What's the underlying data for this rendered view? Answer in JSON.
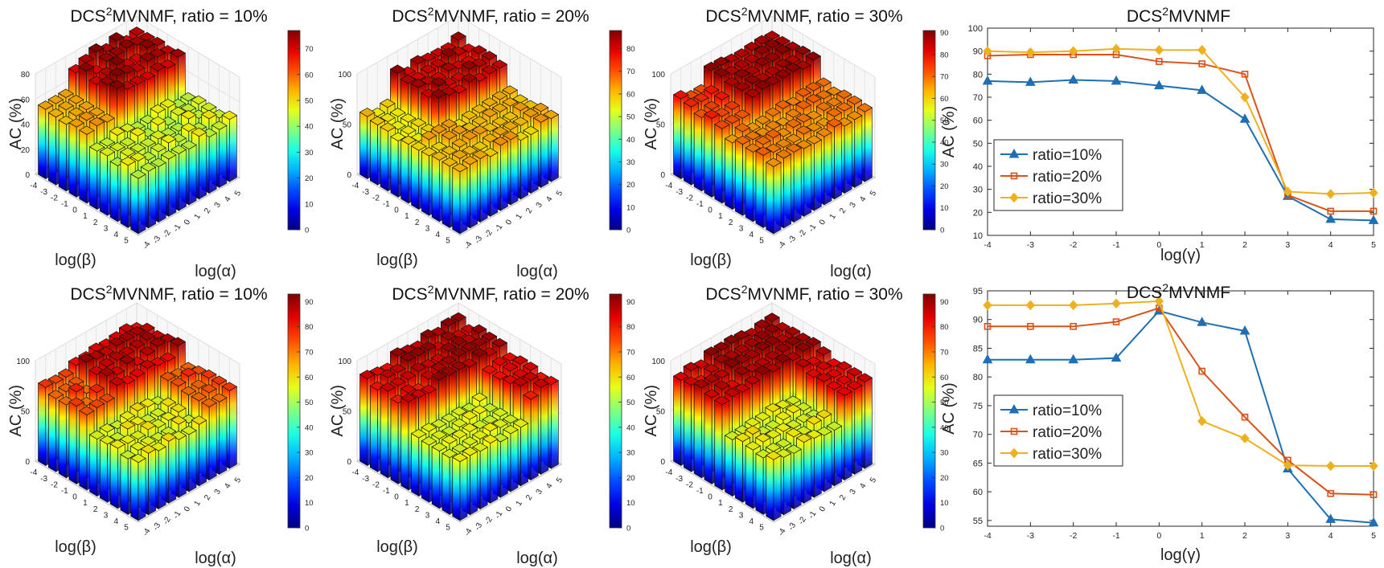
{
  "chart_data": [
    {
      "type": "bar3d",
      "title": {
        "base": "DCS",
        "sup": "2",
        "rest": "MVNMF, ratio = 10%"
      },
      "zlabel": "AC (%)",
      "xlabel": "log(β)",
      "ylabel": "log(α)",
      "xticks": [
        "-4",
        "-3",
        "-2",
        "-1",
        "0",
        "1",
        "2",
        "3",
        "4",
        "5"
      ],
      "yticks": [
        "-4",
        "-3",
        "-2",
        "-1",
        "0",
        "1",
        "2",
        "3",
        "4",
        "5"
      ],
      "zticks": [
        "0",
        "20",
        "40",
        "60",
        "80"
      ],
      "zlim": [
        0,
        80
      ],
      "colorbar": {
        "range": [
          0,
          77
        ],
        "ticks": [
          "0",
          "10",
          "20",
          "30",
          "40",
          "50",
          "60",
          "70"
        ]
      },
      "bars": {
        "split": "back-right",
        "high": [
          70,
          78
        ],
        "mid_left": [
          52,
          58
        ],
        "low": [
          44,
          50
        ]
      }
    },
    {
      "type": "bar3d",
      "title": {
        "base": "DCS",
        "sup": "2",
        "rest": "MVNMF, ratio = 20%"
      },
      "zlabel": "AC (%)",
      "xlabel": "log(β)",
      "ylabel": "log(α)",
      "xticks": [
        "-4",
        "-3",
        "-2",
        "-1",
        "0",
        "1",
        "2",
        "3",
        "4",
        "5"
      ],
      "yticks": [
        "-4",
        "-3",
        "-2",
        "-1",
        "0",
        "1",
        "2",
        "3",
        "4",
        "5"
      ],
      "zticks": [
        "0",
        "50",
        "100"
      ],
      "zlim": [
        0,
        100
      ],
      "colorbar": {
        "range": [
          0,
          88
        ],
        "ticks": [
          "0",
          "10",
          "20",
          "30",
          "40",
          "50",
          "60",
          "70",
          "80"
        ]
      },
      "bars": {
        "split": "back-right",
        "high": [
          80,
          88
        ],
        "mid_left": [
          55,
          62
        ],
        "low": [
          58,
          65
        ]
      }
    },
    {
      "type": "bar3d",
      "title": {
        "base": "DCS",
        "sup": "2",
        "rest": "MVNMF, ratio = 30%"
      },
      "zlabel": "AC (%)",
      "xlabel": "log(β)",
      "ylabel": "log(α)",
      "xticks": [
        "-4",
        "-3",
        "-2",
        "-1",
        "0",
        "1",
        "2",
        "3",
        "4",
        "5"
      ],
      "yticks": [
        "-4",
        "-3",
        "-2",
        "-1",
        "0",
        "1",
        "2",
        "3",
        "4",
        "5"
      ],
      "zticks": [
        "0",
        "50",
        "100"
      ],
      "zlim": [
        0,
        100
      ],
      "colorbar": {
        "range": [
          0,
          91
        ],
        "ticks": [
          "0",
          "10",
          "20",
          "30",
          "40",
          "50",
          "60",
          "70",
          "80",
          "90"
        ]
      },
      "bars": {
        "split": "back-right",
        "high": [
          86,
          91
        ],
        "mid_left": [
          72,
          80
        ],
        "low": [
          66,
          72
        ]
      }
    },
    {
      "type": "line",
      "title": {
        "base": "DCS",
        "sup": "2",
        "rest": "MVNMF"
      },
      "xlabel": "log(γ)",
      "ylabel": "AC (%)",
      "x": [
        -4,
        -3,
        -2,
        -1,
        0,
        1,
        2,
        3,
        4,
        5
      ],
      "xticks": [
        "-4",
        "-3",
        "-2",
        "-1",
        "0",
        "1",
        "2",
        "3",
        "4",
        "5"
      ],
      "yticks": [
        "10",
        "20",
        "30",
        "40",
        "50",
        "60",
        "70",
        "80",
        "90",
        "100"
      ],
      "ylim": [
        10,
        100
      ],
      "legend": "bottom-left",
      "series": [
        {
          "name": "ratio=10%",
          "color": "#1f6fb4",
          "marker": "triangle",
          "values": [
            77,
            76.5,
            77.5,
            77,
            75,
            73,
            60.5,
            27,
            17,
            16.5
          ]
        },
        {
          "name": "ratio=20%",
          "color": "#d95319",
          "marker": "square",
          "values": [
            88,
            88.5,
            88.5,
            88.5,
            85.5,
            84.5,
            80,
            27.5,
            20.5,
            20.5
          ]
        },
        {
          "name": "ratio=30%",
          "color": "#edb120",
          "marker": "diamond",
          "values": [
            90,
            89.5,
            90,
            91,
            90.5,
            90.5,
            70,
            29,
            28,
            28.5
          ]
        }
      ]
    },
    {
      "type": "bar3d",
      "title": {
        "base": "DCS",
        "sup": "2",
        "rest": "MVNMF, ratio = 10%"
      },
      "zlabel": "AC (%)",
      "xlabel": "log(β)",
      "ylabel": "log(α)",
      "xticks": [
        "-4",
        "-3",
        "-2",
        "-1",
        "0",
        "1",
        "2",
        "3",
        "4",
        "5"
      ],
      "yticks": [
        "-4",
        "-3",
        "-2",
        "-1",
        "0",
        "1",
        "2",
        "3",
        "4",
        "5"
      ],
      "zticks": [
        "0",
        "50",
        "100"
      ],
      "zlim": [
        0,
        100
      ],
      "colorbar": {
        "range": [
          0,
          93
        ],
        "ticks": [
          "0",
          "10",
          "20",
          "30",
          "40",
          "50",
          "60",
          "70",
          "80",
          "90"
        ]
      },
      "bars": {
        "split": "back-half",
        "high": [
          82,
          92
        ],
        "mid_left": [
          72,
          80
        ],
        "low": [
          55,
          62
        ]
      }
    },
    {
      "type": "bar3d",
      "title": {
        "base": "DCS",
        "sup": "2",
        "rest": "MVNMF, ratio = 20%"
      },
      "zlabel": "AC (%)",
      "xlabel": "log(β)",
      "ylabel": "log(α)",
      "xticks": [
        "-4",
        "-3",
        "-2",
        "-1",
        "0",
        "1",
        "2",
        "3",
        "4",
        "5"
      ],
      "yticks": [
        "-4",
        "-3",
        "-2",
        "-1",
        "0",
        "1",
        "2",
        "3",
        "4",
        "5"
      ],
      "zticks": [
        "0",
        "50",
        "100"
      ],
      "zlim": [
        0,
        100
      ],
      "colorbar": {
        "range": [
          0,
          93
        ],
        "ticks": [
          "0",
          "10",
          "20",
          "30",
          "40",
          "50",
          "60",
          "70",
          "80",
          "90"
        ]
      },
      "bars": {
        "split": "back-half",
        "high": [
          86,
          93
        ],
        "mid_left": [
          80,
          88
        ],
        "low": [
          55,
          60
        ]
      }
    },
    {
      "type": "bar3d",
      "title": {
        "base": "DCS",
        "sup": "2",
        "rest": "MVNMF, ratio = 30%"
      },
      "zlabel": "AC (%)",
      "xlabel": "log(β)",
      "ylabel": "log(α)",
      "xticks": [
        "-4",
        "-3",
        "-2",
        "-1",
        "0",
        "1",
        "2",
        "3",
        "4",
        "5"
      ],
      "yticks": [
        "-4",
        "-3",
        "-2",
        "-1",
        "0",
        "1",
        "2",
        "3",
        "4",
        "5"
      ],
      "zticks": [
        "0",
        "50",
        "100"
      ],
      "zlim": [
        0,
        100
      ],
      "colorbar": {
        "range": [
          0,
          93
        ],
        "ticks": [
          "0",
          "10",
          "20",
          "30",
          "40",
          "50",
          "60",
          "70",
          "80",
          "90"
        ]
      },
      "bars": {
        "split": "back-half",
        "high": [
          88,
          93
        ],
        "mid_left": [
          82,
          90
        ],
        "low": [
          55,
          62
        ]
      }
    },
    {
      "type": "line",
      "title": {
        "base": "DCS",
        "sup": "2",
        "rest": "MVNMF"
      },
      "xlabel": "log(γ)",
      "ylabel": "AC (%)",
      "x": [
        -4,
        -3,
        -2,
        -1,
        0,
        1,
        2,
        3,
        4,
        5
      ],
      "xticks": [
        "-4",
        "-3",
        "-2",
        "-1",
        "0",
        "1",
        "2",
        "3",
        "4",
        "5"
      ],
      "yticks": [
        "55",
        "60",
        "65",
        "70",
        "75",
        "80",
        "85",
        "90",
        "95"
      ],
      "ylim": [
        54,
        95
      ],
      "legend": "bottom-left",
      "series": [
        {
          "name": "ratio=10%",
          "color": "#1f6fb4",
          "marker": "triangle",
          "values": [
            83,
            83,
            83,
            83.3,
            91.5,
            89.5,
            88,
            64,
            55.2,
            54.6
          ]
        },
        {
          "name": "ratio=20%",
          "color": "#d95319",
          "marker": "square",
          "values": [
            88.8,
            88.8,
            88.8,
            89.6,
            92,
            81,
            73,
            65.5,
            59.7,
            59.5
          ]
        },
        {
          "name": "ratio=30%",
          "color": "#edb120",
          "marker": "diamond",
          "values": [
            92.5,
            92.5,
            92.5,
            92.8,
            93.2,
            72.3,
            69.3,
            64.6,
            64.5,
            64.5
          ]
        }
      ]
    }
  ]
}
